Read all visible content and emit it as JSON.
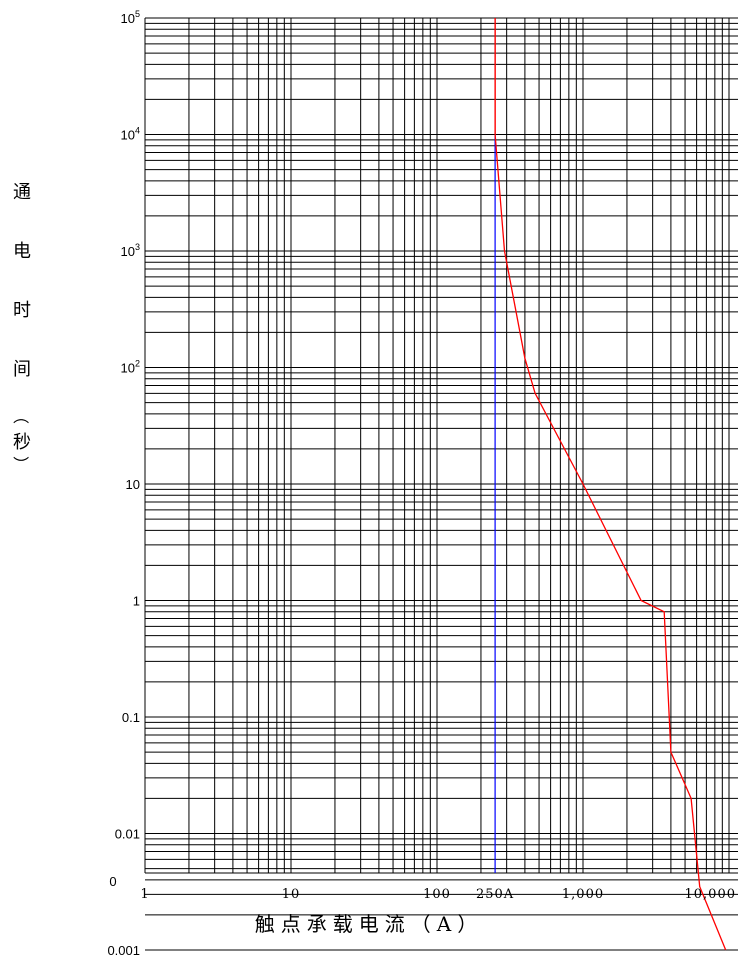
{
  "chart_data": {
    "type": "line",
    "xlabel": "触点承载电流（A）",
    "ylabel_chars": [
      "通",
      "电",
      "时",
      "间",
      "（",
      "秒",
      "）"
    ],
    "x_scale": "log",
    "y_scale": "log",
    "xlim": [
      1,
      10000
    ],
    "ylim": [
      0.001,
      100000
    ],
    "y_ticks": [
      {
        "value": 100000,
        "base": "10",
        "exp": "5"
      },
      {
        "value": 10000,
        "base": "10",
        "exp": "4"
      },
      {
        "value": 1000,
        "base": "10",
        "exp": "3"
      },
      {
        "value": 100,
        "base": "10",
        "exp": "2"
      },
      {
        "value": 10,
        "base": "10",
        "exp": ""
      },
      {
        "value": 1,
        "base": "1",
        "exp": ""
      },
      {
        "value": 0.1,
        "base": "0.1",
        "exp": ""
      },
      {
        "value": 0.01,
        "base": "0.01",
        "exp": ""
      },
      {
        "value": 0.001,
        "base": "0.001",
        "exp": ""
      }
    ],
    "y_zero_label": "0",
    "x_ticks": [
      {
        "value": 1,
        "label": "1"
      },
      {
        "value": 10,
        "label": "10"
      },
      {
        "value": 100,
        "label": "100"
      },
      {
        "value": 250,
        "label": "250A"
      },
      {
        "value": 1000,
        "label": "1,000"
      },
      {
        "value": 10000,
        "label": "10,000"
      }
    ],
    "grid": true,
    "vertical_marker": {
      "x": 250,
      "color_above": "#ff0000",
      "color_below": "#0000ff"
    },
    "series": [
      {
        "color": "#ff0000",
        "points": [
          [
            250,
            100000
          ],
          [
            250,
            10000
          ],
          [
            290,
            1000
          ],
          [
            400,
            120
          ],
          [
            470,
            60
          ],
          [
            1000,
            10
          ],
          [
            2500,
            1
          ],
          [
            3600,
            0.8
          ],
          [
            4000,
            0.05
          ],
          [
            5500,
            0.02
          ],
          [
            6300,
            0.0035
          ],
          [
            9500,
            0.001
          ]
        ]
      }
    ]
  }
}
